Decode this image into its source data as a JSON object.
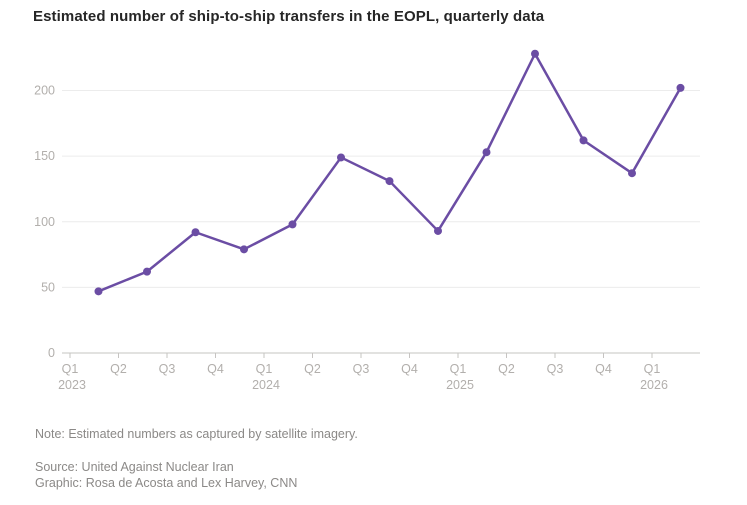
{
  "title": "Estimated number of ship-to-ship transfers in the EOPL, quarterly data",
  "footer": {
    "note": "Note: Estimated numbers as captured by satellite imagery.",
    "source": "Source: United Against Nuclear Iran",
    "graphic": "Graphic: Rosa de Acosta and Lex Harvey, CNN"
  },
  "colors": {
    "line": "#6b4da4",
    "marker": "#6b4da4",
    "gridline": "#ececec",
    "axis": "#c6c4c2",
    "axis_label": "#b2afac",
    "title_text": "#262626",
    "footer_text": "#8b8987"
  },
  "chart_data": {
    "type": "line",
    "title": "Estimated number of ship-to-ship transfers in the EOPL, quarterly data",
    "categories": [
      "Q1 2023",
      "Q2 2023",
      "Q3 2023",
      "Q4 2023",
      "Q1 2024",
      "Q2 2024",
      "Q3 2024",
      "Q4 2024",
      "Q1 2025",
      "Q2 2025",
      "Q3 2025",
      "Q4 2025",
      "Q1 2026"
    ],
    "x_tick_labels": [
      {
        "quarter": "Q1",
        "year": "2023"
      },
      {
        "quarter": "Q2",
        "year": ""
      },
      {
        "quarter": "Q3",
        "year": ""
      },
      {
        "quarter": "Q4",
        "year": ""
      },
      {
        "quarter": "Q1",
        "year": "2024"
      },
      {
        "quarter": "Q2",
        "year": ""
      },
      {
        "quarter": "Q3",
        "year": ""
      },
      {
        "quarter": "Q4",
        "year": ""
      },
      {
        "quarter": "Q1",
        "year": "2025"
      },
      {
        "quarter": "Q2",
        "year": ""
      },
      {
        "quarter": "Q3",
        "year": ""
      },
      {
        "quarter": "Q4",
        "year": ""
      },
      {
        "quarter": "Q1",
        "year": "2026"
      }
    ],
    "values": [
      47,
      62,
      92,
      79,
      98,
      149,
      131,
      93,
      153,
      228,
      162,
      137,
      202
    ],
    "yticks": [
      0,
      50,
      100,
      150,
      200
    ],
    "ylim": [
      0,
      240
    ],
    "xlabel": "",
    "ylabel": "",
    "grid": "horizontal",
    "legend": "none",
    "marker": "circle"
  }
}
